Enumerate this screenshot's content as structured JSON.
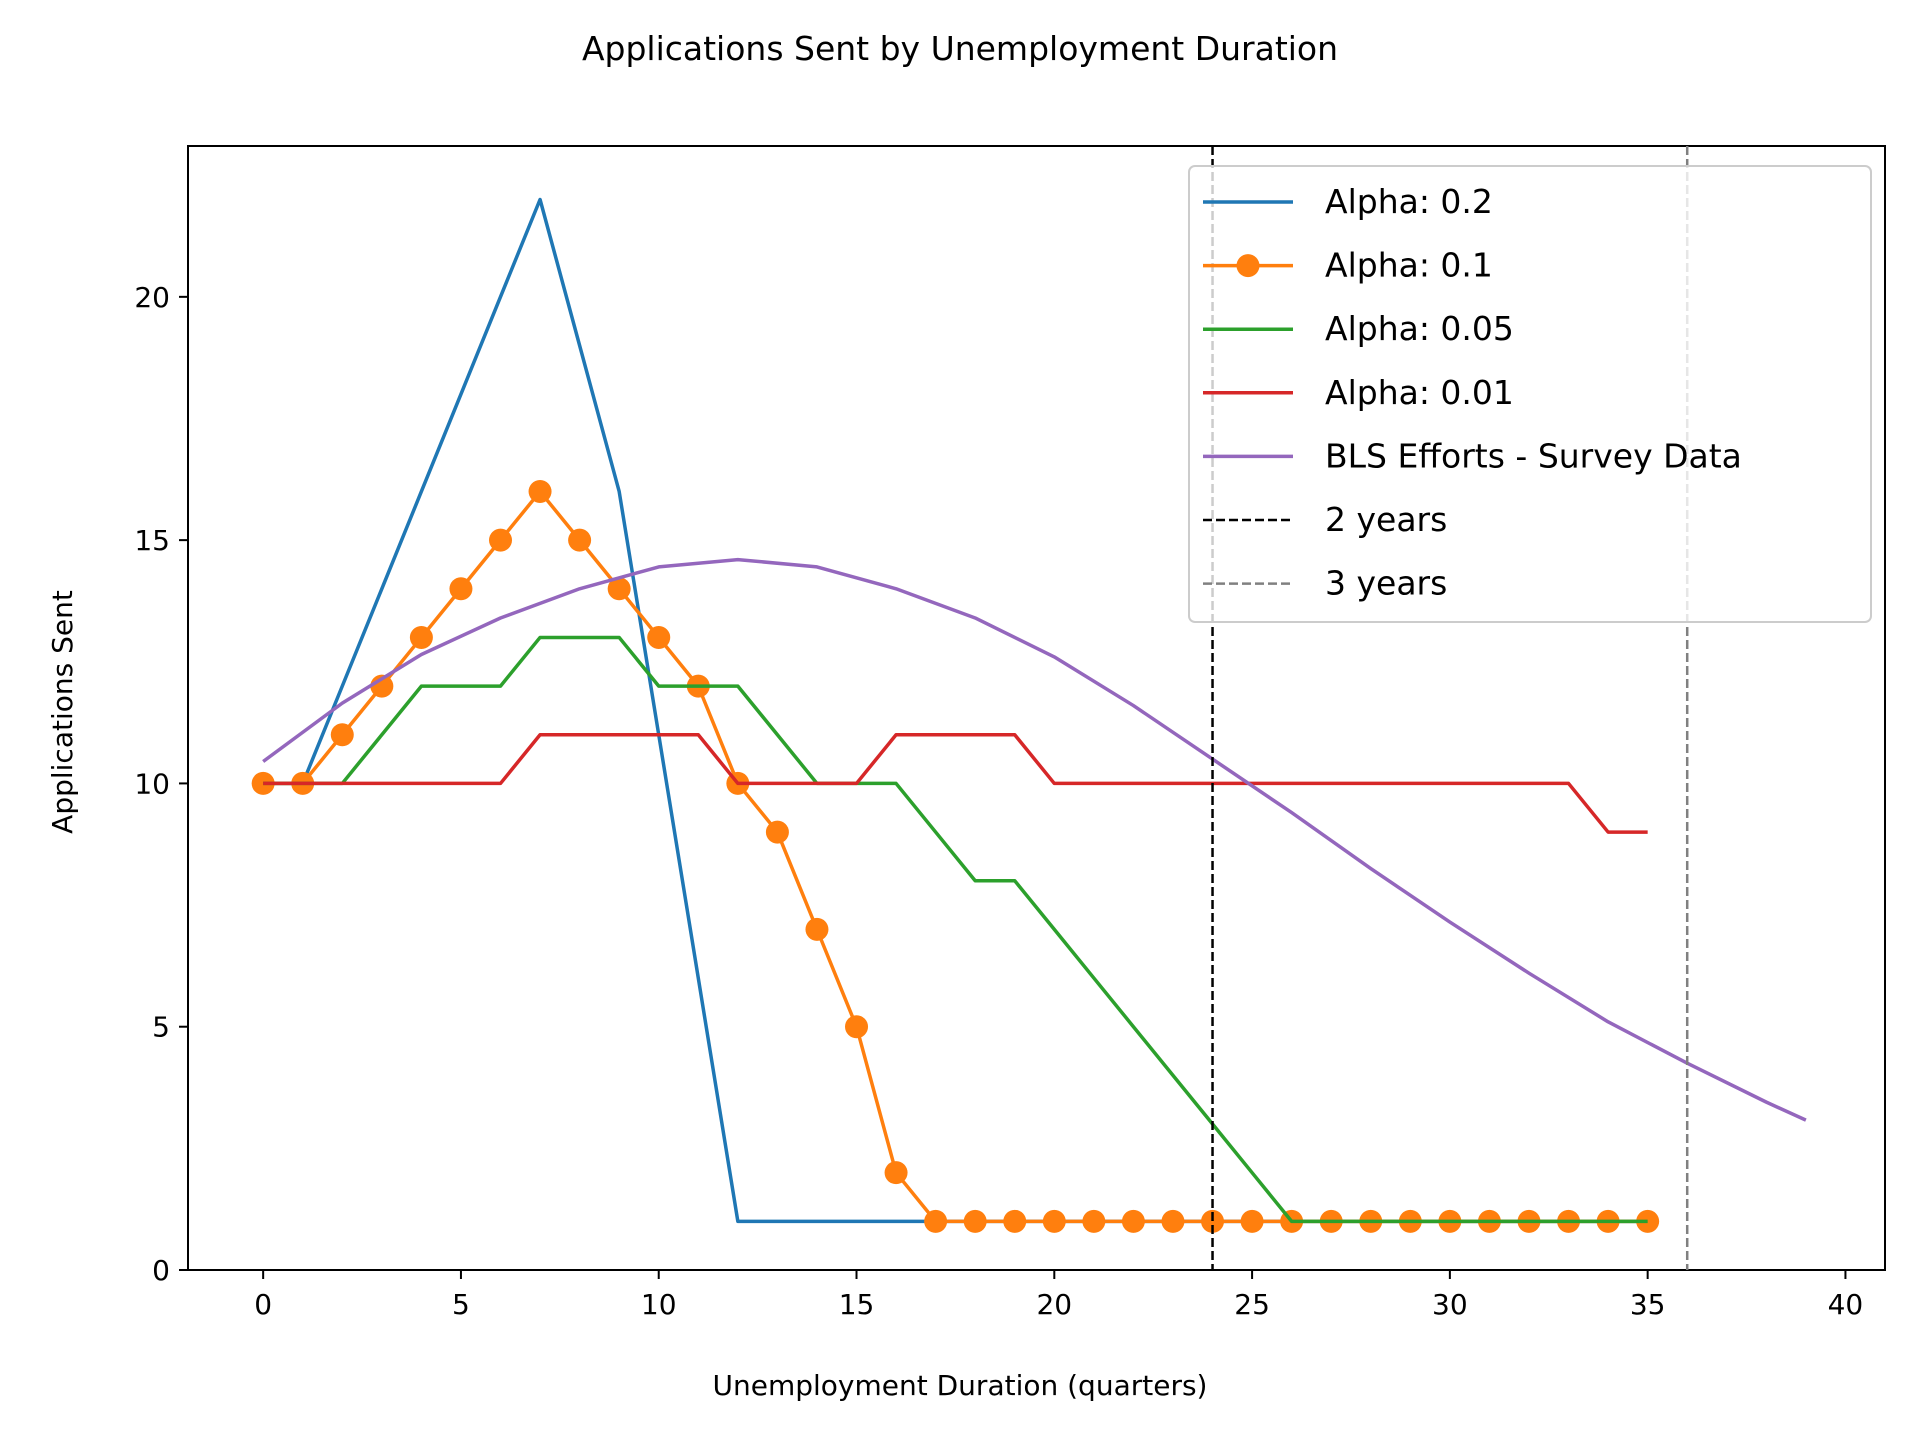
{
  "chart_data": {
    "type": "line",
    "title": "Applications Sent by Unemployment Duration",
    "xlabel": "Unemployment Duration (quarters)",
    "ylabel": "Applications Sent",
    "xlim": [
      -1.9,
      41
    ],
    "ylim": [
      0,
      23.1
    ],
    "xticks": [
      0,
      5,
      10,
      15,
      20,
      25,
      30,
      35,
      40
    ],
    "yticks": [
      0,
      5,
      10,
      15,
      20
    ],
    "grid": false,
    "legend_position": "top-right",
    "series": [
      {
        "name": "Alpha: 0.2",
        "color": "#1f77b4",
        "marker": "none",
        "x": [
          0,
          1,
          2,
          3,
          4,
          5,
          6,
          7,
          8,
          9,
          10,
          11,
          12,
          13,
          14,
          15,
          16,
          17,
          18,
          19,
          20,
          21,
          22,
          23,
          24,
          25,
          26,
          27,
          28,
          29,
          30,
          31,
          32,
          33,
          34,
          35
        ],
        "y": [
          10,
          10,
          12,
          14,
          16,
          18,
          20,
          22,
          19,
          16,
          11,
          6,
          1,
          1,
          1,
          1,
          1,
          1,
          1,
          1,
          1,
          1,
          1,
          1,
          1,
          1,
          1,
          1,
          1,
          1,
          1,
          1,
          1,
          1,
          1,
          1
        ]
      },
      {
        "name": "Alpha: 0.1",
        "color": "#ff7f0e",
        "marker": "circle",
        "x": [
          0,
          1,
          2,
          3,
          4,
          5,
          6,
          7,
          8,
          9,
          10,
          11,
          12,
          13,
          14,
          15,
          16,
          17,
          18,
          19,
          20,
          21,
          22,
          23,
          24,
          25,
          26,
          27,
          28,
          29,
          30,
          31,
          32,
          33,
          34,
          35
        ],
        "y": [
          10,
          10,
          11,
          12,
          13,
          14,
          15,
          16,
          15,
          14,
          13,
          12,
          10,
          9,
          7,
          5,
          2,
          1,
          1,
          1,
          1,
          1,
          1,
          1,
          1,
          1,
          1,
          1,
          1,
          1,
          1,
          1,
          1,
          1,
          1,
          1
        ]
      },
      {
        "name": "Alpha: 0.05",
        "color": "#2ca02c",
        "marker": "none",
        "x": [
          0,
          1,
          2,
          3,
          4,
          5,
          6,
          7,
          8,
          9,
          10,
          11,
          12,
          13,
          14,
          15,
          16,
          17,
          18,
          19,
          20,
          21,
          22,
          23,
          24,
          25,
          26,
          27,
          28,
          29,
          30,
          31,
          32,
          33,
          34,
          35
        ],
        "y": [
          10,
          10,
          10,
          11,
          12,
          12,
          12,
          13,
          13,
          13,
          12,
          12,
          12,
          11,
          10,
          10,
          10,
          9,
          8,
          8,
          7,
          6,
          5,
          4,
          3,
          2,
          1,
          1,
          1,
          1,
          1,
          1,
          1,
          1,
          1,
          1
        ]
      },
      {
        "name": "Alpha: 0.01",
        "color": "#d62728",
        "marker": "none",
        "x": [
          0,
          1,
          2,
          3,
          4,
          5,
          6,
          7,
          8,
          9,
          10,
          11,
          12,
          13,
          14,
          15,
          16,
          17,
          18,
          19,
          20,
          21,
          22,
          23,
          24,
          25,
          26,
          27,
          28,
          29,
          30,
          31,
          32,
          33,
          34,
          35
        ],
        "y": [
          10,
          10,
          10,
          10,
          10,
          10,
          10,
          11,
          11,
          11,
          11,
          11,
          10,
          10,
          10,
          10,
          11,
          11,
          11,
          11,
          10,
          10,
          10,
          10,
          10,
          10,
          10,
          10,
          10,
          10,
          10,
          10,
          10,
          10,
          9,
          9
        ]
      },
      {
        "name": "BLS Efforts - Survey Data",
        "color": "#9467bd",
        "marker": "none",
        "x": [
          0,
          2,
          4,
          6,
          8,
          10,
          12,
          14,
          16,
          18,
          20,
          22,
          24,
          26,
          28,
          30,
          32,
          34,
          36,
          38,
          39
        ],
        "y": [
          10.45,
          11.65,
          12.65,
          13.4,
          14.0,
          14.45,
          14.6,
          14.45,
          14.0,
          13.4,
          12.6,
          11.6,
          10.5,
          9.4,
          8.25,
          7.15,
          6.1,
          5.1,
          4.25,
          3.45,
          3.08
        ]
      }
    ],
    "reference_lines": [
      {
        "name": "2 years",
        "x": 24,
        "color": "#000000",
        "style": "dashed"
      },
      {
        "name": "3 years",
        "x": 36,
        "color": "#808080",
        "style": "dashed"
      }
    ]
  }
}
